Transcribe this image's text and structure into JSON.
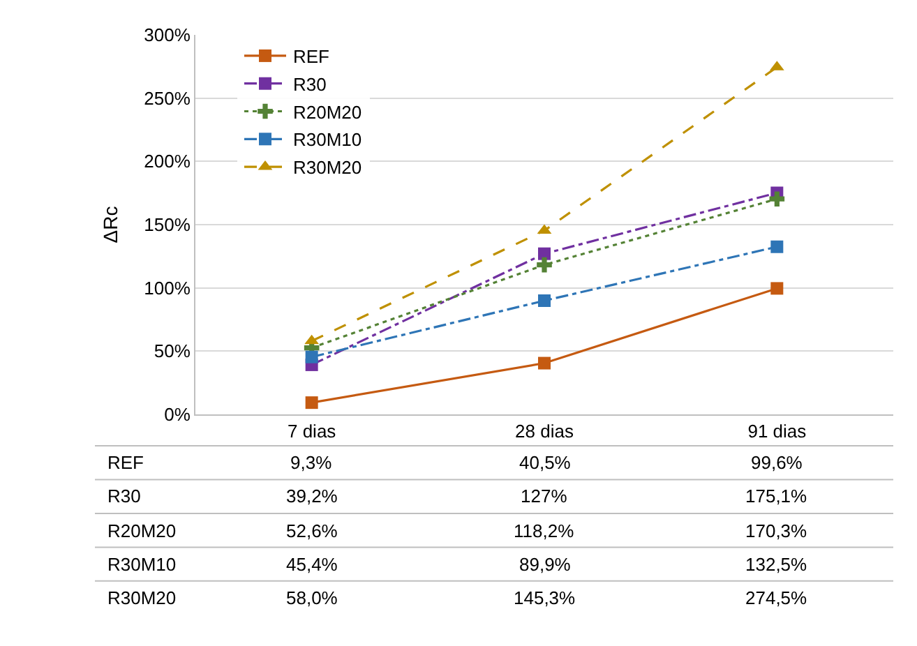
{
  "chart_data": {
    "type": "line",
    "ylabel": "ΔRc",
    "categories": [
      "7 dias",
      "28 dias",
      "91 dias"
    ],
    "series": [
      {
        "name": "REF",
        "color": "#c55a11",
        "marker": "square",
        "line_style": "solid",
        "values": [
          9.3,
          40.5,
          99.6
        ],
        "value_labels": [
          "9,3%",
          "40,5%",
          "99,6%"
        ]
      },
      {
        "name": "R30",
        "color": "#7030a0",
        "marker": "square",
        "line_style": "dashdot",
        "values": [
          39.2,
          127,
          175.1
        ],
        "value_labels": [
          "39,2%",
          "127%",
          "175,1%"
        ]
      },
      {
        "name": "R20M20",
        "color": "#548235",
        "marker": "cross",
        "line_style": "dotted",
        "values": [
          52.6,
          118.2,
          170.3
        ],
        "value_labels": [
          "52,6%",
          "118,2%",
          "170,3%"
        ]
      },
      {
        "name": "R30M10",
        "color": "#2e75b6",
        "marker": "square",
        "line_style": "dashdot",
        "values": [
          45.4,
          89.9,
          132.5
        ],
        "value_labels": [
          "45,4%",
          "89,9%",
          "132,5%"
        ]
      },
      {
        "name": "R30M20",
        "color": "#bf9000",
        "marker": "triangle",
        "line_style": "dashed",
        "values": [
          58.0,
          145.3,
          274.5
        ],
        "value_labels": [
          "58,0%",
          "145,3%",
          "274,5%"
        ]
      }
    ],
    "ylim": [
      0,
      300
    ],
    "yticks": [
      {
        "value": 0,
        "label": "0%"
      },
      {
        "value": 50,
        "label": "50%"
      },
      {
        "value": 100,
        "label": "100%"
      },
      {
        "value": 150,
        "label": "150%"
      },
      {
        "value": 200,
        "label": "200%"
      },
      {
        "value": 250,
        "label": "250%"
      },
      {
        "value": 300,
        "label": "300%"
      }
    ],
    "grid": "y",
    "legend": "top left"
  }
}
